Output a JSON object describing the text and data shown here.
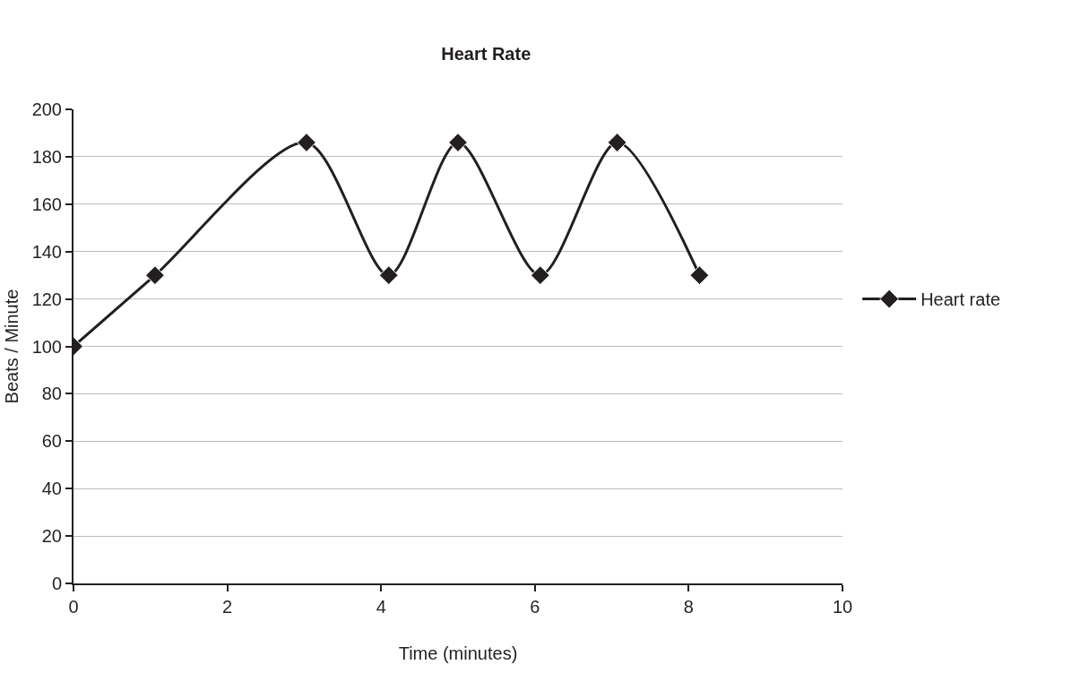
{
  "chart_data": {
    "type": "line",
    "title": "Heart Rate",
    "xlabel": "Time (minutes)",
    "ylabel": "Beats / Minute",
    "x": [
      0,
      1.06,
      3.03,
      4.1,
      5,
      6.07,
      7.07,
      8.14
    ],
    "series": [
      {
        "name": "Heart rate",
        "color": "#231f20",
        "values": [
          100,
          130,
          186,
          130,
          186,
          130,
          186,
          130
        ]
      }
    ],
    "xlim": [
      0,
      10
    ],
    "xticks": [
      0,
      2,
      4,
      6,
      8,
      10
    ],
    "ylim": [
      0,
      200
    ],
    "yticks": [
      0,
      20,
      40,
      60,
      80,
      100,
      120,
      140,
      160,
      180,
      200
    ],
    "grid": "y",
    "legend": "right",
    "marker": "diamond",
    "line_style": "solid"
  }
}
